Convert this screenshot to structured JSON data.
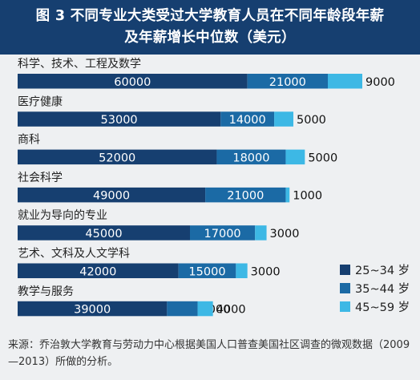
{
  "title_lines": [
    "图 3 不同专业大类受过大学教育人员在不同年龄段年薪",
    "及年薪增长中位数（美元）"
  ],
  "source": "来源：乔治敦大学教育与劳动力中心根据美国人口普查美国社区调查的微观数据（2009—2013）所做的分析。",
  "colors": {
    "title_bg": "#163f70",
    "s1": "#163f70",
    "s2": "#1b6aa5",
    "s3": "#3db8e5",
    "bg": "#eef0f2"
  },
  "chart_data": {
    "type": "bar",
    "orientation": "horizontal",
    "stacked": true,
    "categories": [
      "科学、技术、工程及数学",
      "医疗健康",
      "商科",
      "社会科学",
      "就业为导向的专业",
      "艺术、文科及人文学科",
      "教学与服务"
    ],
    "series": [
      {
        "name": "25~34 岁",
        "values": [
          60000,
          53000,
          52000,
          49000,
          45000,
          42000,
          39000
        ]
      },
      {
        "name": "35~44 岁",
        "values": [
          21000,
          14000,
          18000,
          21000,
          17000,
          15000,
          8000
        ]
      },
      {
        "name": "45~59 岁",
        "values": [
          9000,
          5000,
          5000,
          1000,
          3000,
          3000,
          4000
        ]
      }
    ],
    "legend_position": "bottom-right",
    "grid": false
  }
}
